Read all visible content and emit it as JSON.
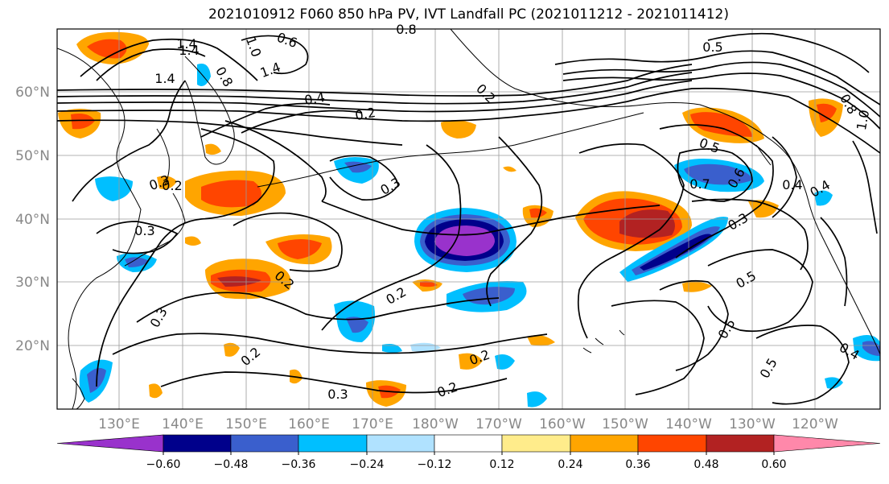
{
  "title": "2021010912 F060 850 hPa PV, IVT Landfall PC (2021011212 - 2021011412)",
  "map": {
    "lon_labels": [
      "130°E",
      "140°E",
      "150°E",
      "160°E",
      "170°E",
      "180°W",
      "170°W",
      "160°W",
      "150°W",
      "140°W",
      "130°W",
      "120°W"
    ],
    "lat_labels": [
      "60°N",
      "50°N",
      "40°N",
      "30°N",
      "20°N"
    ],
    "contour_labels": [
      "1.4",
      "1.4",
      "1.4",
      "1.4",
      "0.8",
      "0.8",
      "0.6",
      "1.0",
      "0.4",
      "0.2",
      "0.2",
      "0.2",
      "0.2",
      "0.2",
      "0.2",
      "0.2",
      "0.2",
      "0.3",
      "0.3",
      "0.3",
      "0.3",
      "0.3",
      "0.3",
      "0.5",
      "0.5",
      "0.5",
      "0.5",
      "0.6",
      "0.4",
      "0.4",
      "0.4",
      "0.7",
      "1.0",
      "0.8",
      "0.5"
    ]
  },
  "colorbar": {
    "tick_labels": [
      "−0.60",
      "−0.48",
      "−0.36",
      "−0.24",
      "−0.12",
      "0.12",
      "0.24",
      "0.36",
      "0.48",
      "0.60"
    ],
    "colors": [
      "#9932cc",
      "#00008b",
      "#3a5fcd",
      "#00bfff",
      "#b0e2ff",
      "#ffffff",
      "#ffec8b",
      "#ffa500",
      "#ff4500",
      "#b22222",
      "#ff88aa"
    ]
  }
}
